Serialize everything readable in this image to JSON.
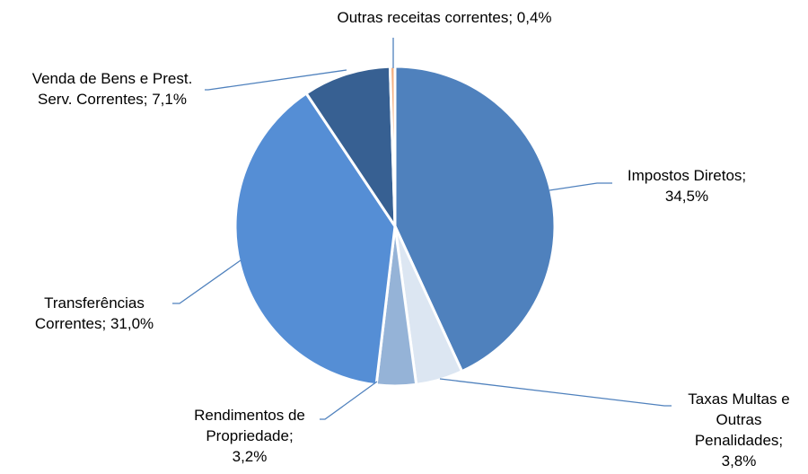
{
  "chart_data": {
    "type": "pie",
    "values": [
      34.5,
      3.8,
      3.2,
      31.0,
      7.1,
      0.4
    ],
    "value_labels": [
      "Impostos Diretos;\n34,5%",
      "Taxas Multas e\nOutras\nPenalidades;\n3,8%",
      "Rendimentos de\nPropriedade;\n3,2%",
      "Transferências\nCorrentes; 31,0%",
      "Venda de Bens e Prest.\nServ. Correntes; 7,1%",
      "Outras receitas correntes; 0,4%"
    ],
    "colors": [
      "#4f81bd",
      "#dce6f2",
      "#95b3d7",
      "#558ed5",
      "#376092",
      "#f4b183"
    ]
  }
}
